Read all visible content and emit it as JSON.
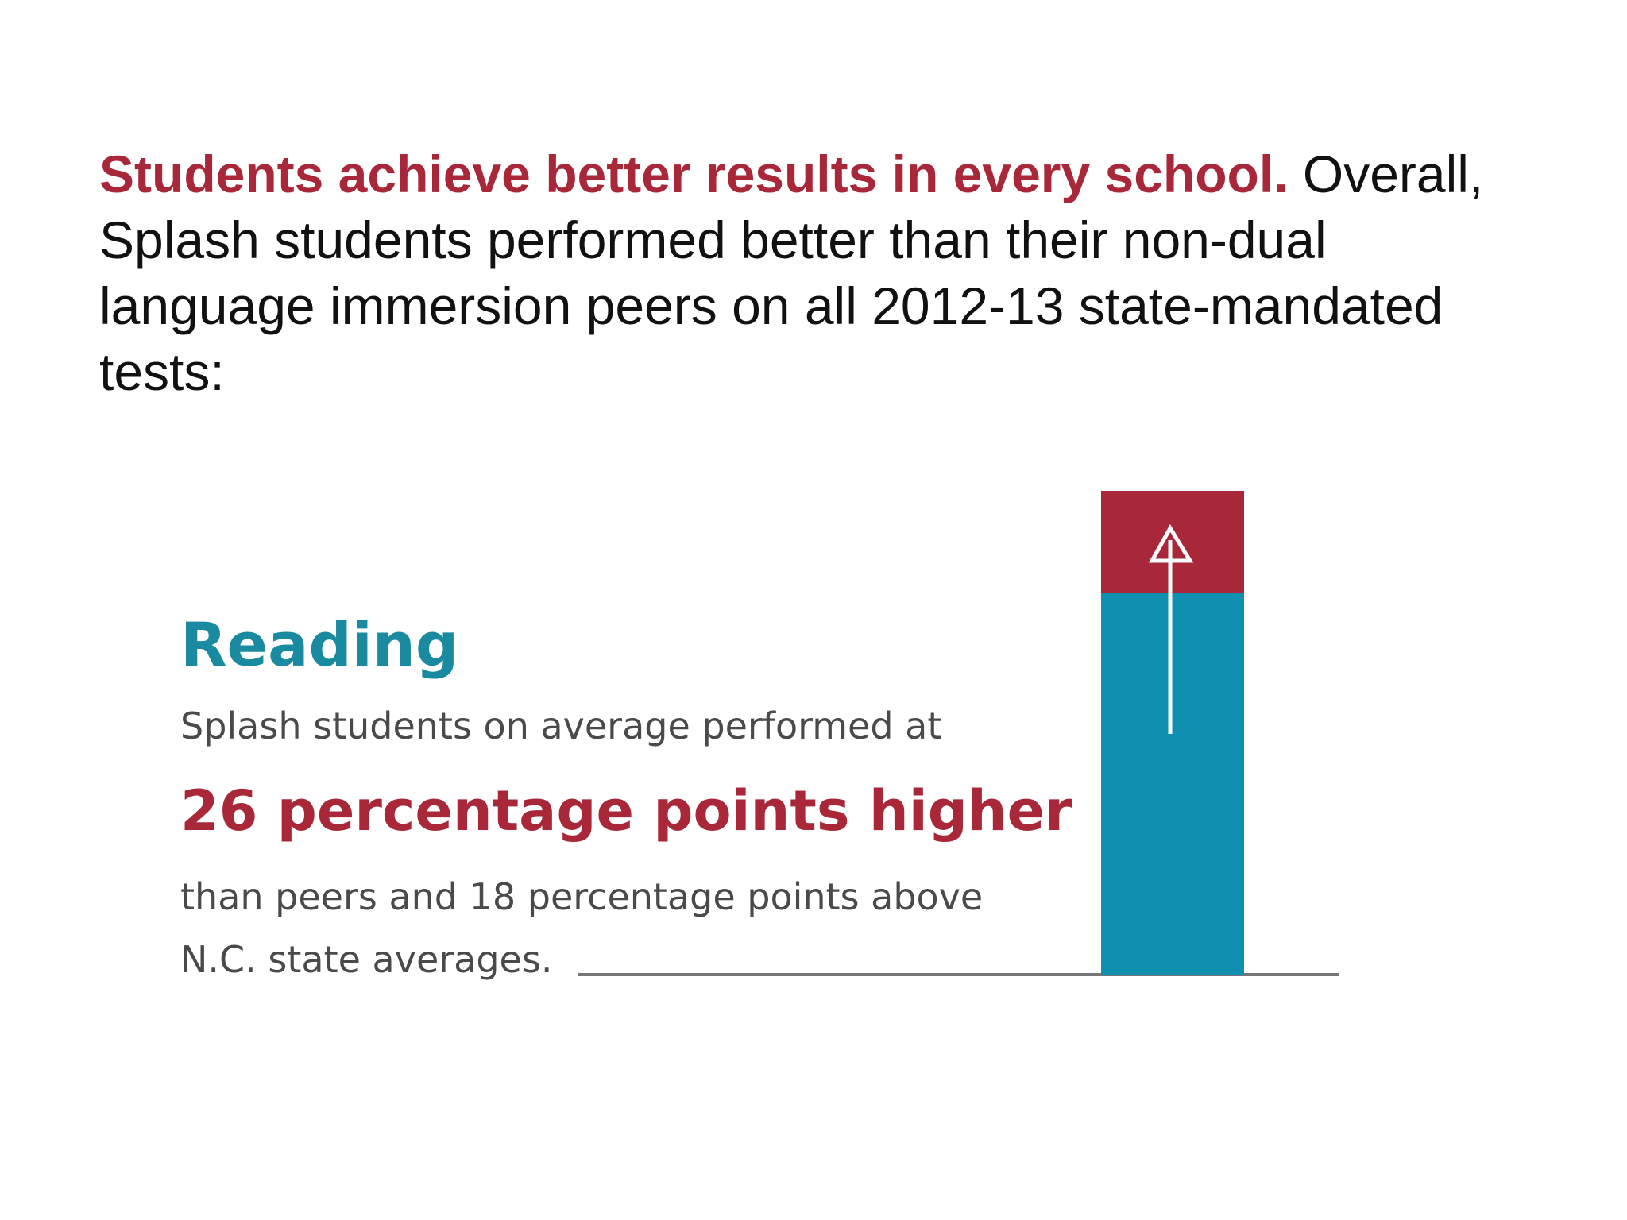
{
  "paragraph": {
    "lead": "Students achieve better results in every school.",
    "lines": [
      "Overall,",
      "Splash students performed better than their non-dual",
      "language immersion peers on all 2012-13 state-mandated",
      "tests:"
    ]
  },
  "infographic": {
    "title": "Reading",
    "lines": [
      "Splash students on average performed at",
      "26 percentage points higher",
      "than peers and 18 percentage points above",
      "N.C. state averages."
    ]
  }
}
